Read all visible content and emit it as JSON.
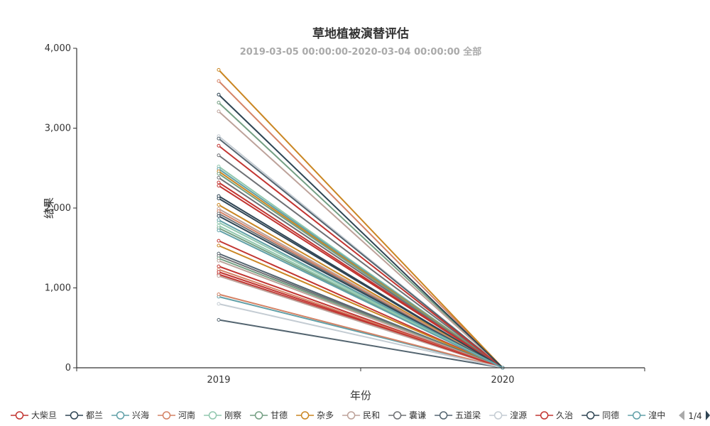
{
  "chart_data": {
    "type": "line",
    "title": "草地植被演替评估",
    "subtitle": "2019-03-05 00:00:00-2020-03-04 00:00:00 全部",
    "xlabel": "年份",
    "ylabel": "结果",
    "categories": [
      "2019",
      "2020"
    ],
    "ylim": [
      0,
      4000
    ],
    "yticks": [
      0,
      1000,
      2000,
      3000,
      4000
    ],
    "ytick_labels": [
      "0",
      "1,000",
      "2,000",
      "3,000",
      "4,000"
    ],
    "grid": false,
    "legend_position": "bottom",
    "legend_page": "1/4",
    "series": [
      {
        "name": "大柴旦",
        "color": "#c23531",
        "values": [
          1200,
          0
        ]
      },
      {
        "name": "都兰",
        "color": "#2f4554",
        "values": [
          2150,
          0
        ]
      },
      {
        "name": "兴海",
        "color": "#61a0a8",
        "values": [
          1850,
          0
        ]
      },
      {
        "name": "河南",
        "color": "#d48265",
        "values": [
          920,
          0
        ]
      },
      {
        "name": "刚察",
        "color": "#91c7ae",
        "values": [
          1780,
          0
        ]
      },
      {
        "name": "甘德",
        "color": "#749f83",
        "values": [
          3320,
          0
        ]
      },
      {
        "name": "杂多",
        "color": "#ca8622",
        "values": [
          3730,
          0
        ]
      },
      {
        "name": "民和",
        "color": "#bda29a",
        "values": [
          3210,
          0
        ]
      },
      {
        "name": "囊谦",
        "color": "#6e7074",
        "values": [
          2660,
          0
        ]
      },
      {
        "name": "五道梁",
        "color": "#546570",
        "values": [
          600,
          0
        ]
      },
      {
        "name": "湟源",
        "color": "#c4ccd3",
        "values": [
          800,
          0
        ]
      },
      {
        "name": "久治",
        "color": "#c23531",
        "values": [
          2780,
          0
        ]
      },
      {
        "name": "同德",
        "color": "#2f4554",
        "values": [
          3420,
          0
        ]
      },
      {
        "name": "湟中",
        "color": "#61a0a8",
        "values": [
          1720,
          0
        ]
      }
    ],
    "extra_lines": [
      {
        "color": "#d48265",
        "values": [
          3590,
          0
        ]
      },
      {
        "color": "#c4ccd3",
        "values": [
          2900,
          0
        ]
      },
      {
        "color": "#546570",
        "values": [
          2870,
          0
        ]
      },
      {
        "color": "#91c7ae",
        "values": [
          2520,
          0
        ]
      },
      {
        "color": "#61a0a8",
        "values": [
          2490,
          0
        ]
      },
      {
        "color": "#ca8622",
        "values": [
          2460,
          0
        ]
      },
      {
        "color": "#749f83",
        "values": [
          2430,
          0
        ]
      },
      {
        "color": "#6e7074",
        "values": [
          2380,
          0
        ]
      },
      {
        "color": "#c23531",
        "values": [
          2320,
          0
        ]
      },
      {
        "color": "#c23531",
        "values": [
          2280,
          0
        ]
      },
      {
        "color": "#2f4554",
        "values": [
          2120,
          0
        ]
      },
      {
        "color": "#ca8622",
        "values": [
          2040,
          0
        ]
      },
      {
        "color": "#bda29a",
        "values": [
          1990,
          0
        ]
      },
      {
        "color": "#d48265",
        "values": [
          1960,
          0
        ]
      },
      {
        "color": "#6e7074",
        "values": [
          1930,
          0
        ]
      },
      {
        "color": "#2f4554",
        "values": [
          1900,
          0
        ]
      },
      {
        "color": "#91c7ae",
        "values": [
          1820,
          0
        ]
      },
      {
        "color": "#749f83",
        "values": [
          1750,
          0
        ]
      },
      {
        "color": "#c23531",
        "values": [
          1590,
          0
        ]
      },
      {
        "color": "#ca8622",
        "values": [
          1530,
          0
        ]
      },
      {
        "color": "#546570",
        "values": [
          1430,
          0
        ]
      },
      {
        "color": "#6e7074",
        "values": [
          1400,
          0
        ]
      },
      {
        "color": "#749f83",
        "values": [
          1370,
          0
        ]
      },
      {
        "color": "#bda29a",
        "values": [
          1340,
          0
        ]
      },
      {
        "color": "#c23531",
        "values": [
          1270,
          0
        ]
      },
      {
        "color": "#d48265",
        "values": [
          1230,
          0
        ]
      },
      {
        "color": "#c23531",
        "values": [
          1170,
          0
        ]
      },
      {
        "color": "#bda29a",
        "values": [
          1150,
          0
        ]
      },
      {
        "color": "#61a0a8",
        "values": [
          890,
          0
        ]
      }
    ]
  }
}
